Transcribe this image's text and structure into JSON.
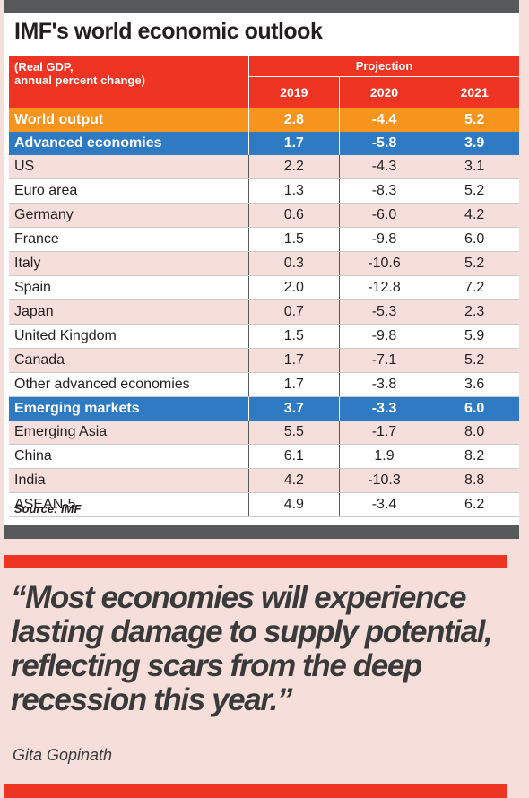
{
  "title": "IMF's world economic outlook",
  "header": {
    "label_line1": "(Real GDP,",
    "label_line2": "annual percent change)",
    "projection": "Projection",
    "years": [
      "2019",
      "2020",
      "2021"
    ]
  },
  "rows": [
    {
      "name": "World output",
      "v": [
        "2.8",
        "-4.4",
        "5.2"
      ],
      "style": "orange"
    },
    {
      "name": "Advanced economies",
      "v": [
        "1.7",
        "-5.8",
        "3.9"
      ],
      "style": "blue"
    },
    {
      "name": "US",
      "v": [
        "2.2",
        "-4.3",
        "3.1"
      ],
      "style": "alt"
    },
    {
      "name": "Euro area",
      "v": [
        "1.3",
        "-8.3",
        "5.2"
      ],
      "style": "white"
    },
    {
      "name": "Germany",
      "v": [
        "0.6",
        "-6.0",
        "4.2"
      ],
      "style": "alt"
    },
    {
      "name": "France",
      "v": [
        "1.5",
        "-9.8",
        "6.0"
      ],
      "style": "white"
    },
    {
      "name": "Italy",
      "v": [
        "0.3",
        "-10.6",
        "5.2"
      ],
      "style": "alt"
    },
    {
      "name": "Spain",
      "v": [
        "2.0",
        "-12.8",
        "7.2"
      ],
      "style": "white"
    },
    {
      "name": "Japan",
      "v": [
        "0.7",
        "-5.3",
        "2.3"
      ],
      "style": "alt"
    },
    {
      "name": "United Kingdom",
      "v": [
        "1.5",
        "-9.8",
        "5.9"
      ],
      "style": "white"
    },
    {
      "name": "Canada",
      "v": [
        "1.7",
        "-7.1",
        "5.2"
      ],
      "style": "alt"
    },
    {
      "name": "Other advanced economies",
      "v": [
        "1.7",
        "-3.8",
        "3.6"
      ],
      "style": "white"
    },
    {
      "name": "Emerging markets",
      "v": [
        "3.7",
        "-3.3",
        "6.0"
      ],
      "style": "blue"
    },
    {
      "name": "Emerging Asia",
      "v": [
        "5.5",
        "-1.7",
        "8.0"
      ],
      "style": "alt"
    },
    {
      "name": "China",
      "v": [
        "6.1",
        "1.9",
        "8.2"
      ],
      "style": "white"
    },
    {
      "name": "India",
      "v": [
        "4.2",
        "-10.3",
        "8.8"
      ],
      "style": "alt"
    },
    {
      "name": "ASEAN-5",
      "v": [
        "4.9",
        "-3.4",
        "6.2"
      ],
      "style": "white"
    }
  ],
  "source": "Source: IMF",
  "quote": "“Most economies will experience lasting damage to supply potential, reflecting scars from the deep recession this year.”",
  "author": "Gita Gopinath",
  "colors": {
    "red": "#ee3524",
    "orange": "#f7941d",
    "blue": "#2e7bc4",
    "dark_gray": "#58595b",
    "pink": "#f6dfdb"
  }
}
